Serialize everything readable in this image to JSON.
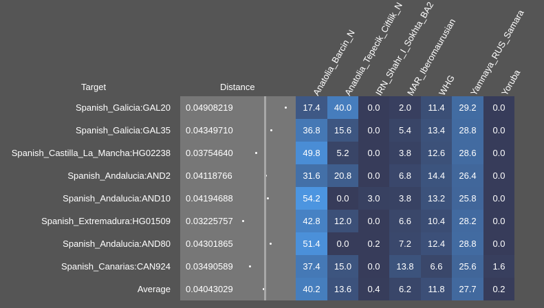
{
  "headers": {
    "target": "Target",
    "distance": "Distance"
  },
  "columns": [
    "Anatolia_Barcin_N",
    "Anatolia_Tepecik_Ciftlik_N",
    "IRN_Shahr_I_Sokhta_BA2",
    "MAR_Iberomaurusian",
    "WHG",
    "Yamnaya_RUS_Samara",
    "Yoruba"
  ],
  "rows": [
    {
      "target": "Spanish_Galicia:GAL20",
      "distance": "0.04908219",
      "values": [
        "17.4",
        "40.0",
        "0.0",
        "2.0",
        "11.4",
        "29.2",
        "0.0"
      ]
    },
    {
      "target": "Spanish_Galicia:GAL35",
      "distance": "0.04349710",
      "values": [
        "36.8",
        "15.6",
        "0.0",
        "5.4",
        "13.4",
        "28.8",
        "0.0"
      ]
    },
    {
      "target": "Spanish_Castilla_La_Mancha:HG02238",
      "distance": "0.03754640",
      "values": [
        "49.8",
        "5.2",
        "0.0",
        "3.8",
        "12.6",
        "28.6",
        "0.0"
      ]
    },
    {
      "target": "Spanish_Andalucia:AND2",
      "distance": "0.04118766",
      "values": [
        "31.6",
        "20.8",
        "0.0",
        "6.8",
        "14.4",
        "26.4",
        "0.0"
      ]
    },
    {
      "target": "Spanish_Andalucia:AND10",
      "distance": "0.04194688",
      "values": [
        "54.2",
        "0.0",
        "3.0",
        "3.8",
        "13.2",
        "25.8",
        "0.0"
      ]
    },
    {
      "target": "Spanish_Extremadura:HG01509",
      "distance": "0.03225757",
      "values": [
        "42.8",
        "12.0",
        "0.0",
        "6.6",
        "10.4",
        "28.2",
        "0.0"
      ]
    },
    {
      "target": "Spanish_Andalucia:AND80",
      "distance": "0.04301865",
      "values": [
        "51.4",
        "0.0",
        "0.2",
        "7.2",
        "12.4",
        "28.8",
        "0.0"
      ]
    },
    {
      "target": "Spanish_Canarias:CAN924",
      "distance": "0.03490589",
      "values": [
        "37.4",
        "15.0",
        "0.0",
        "13.8",
        "6.6",
        "25.6",
        "1.6"
      ]
    },
    {
      "target": "Average",
      "distance": "0.04043029",
      "values": [
        "40.2",
        "13.6",
        "0.4",
        "6.2",
        "11.8",
        "27.7",
        "0.2"
      ]
    }
  ]
}
